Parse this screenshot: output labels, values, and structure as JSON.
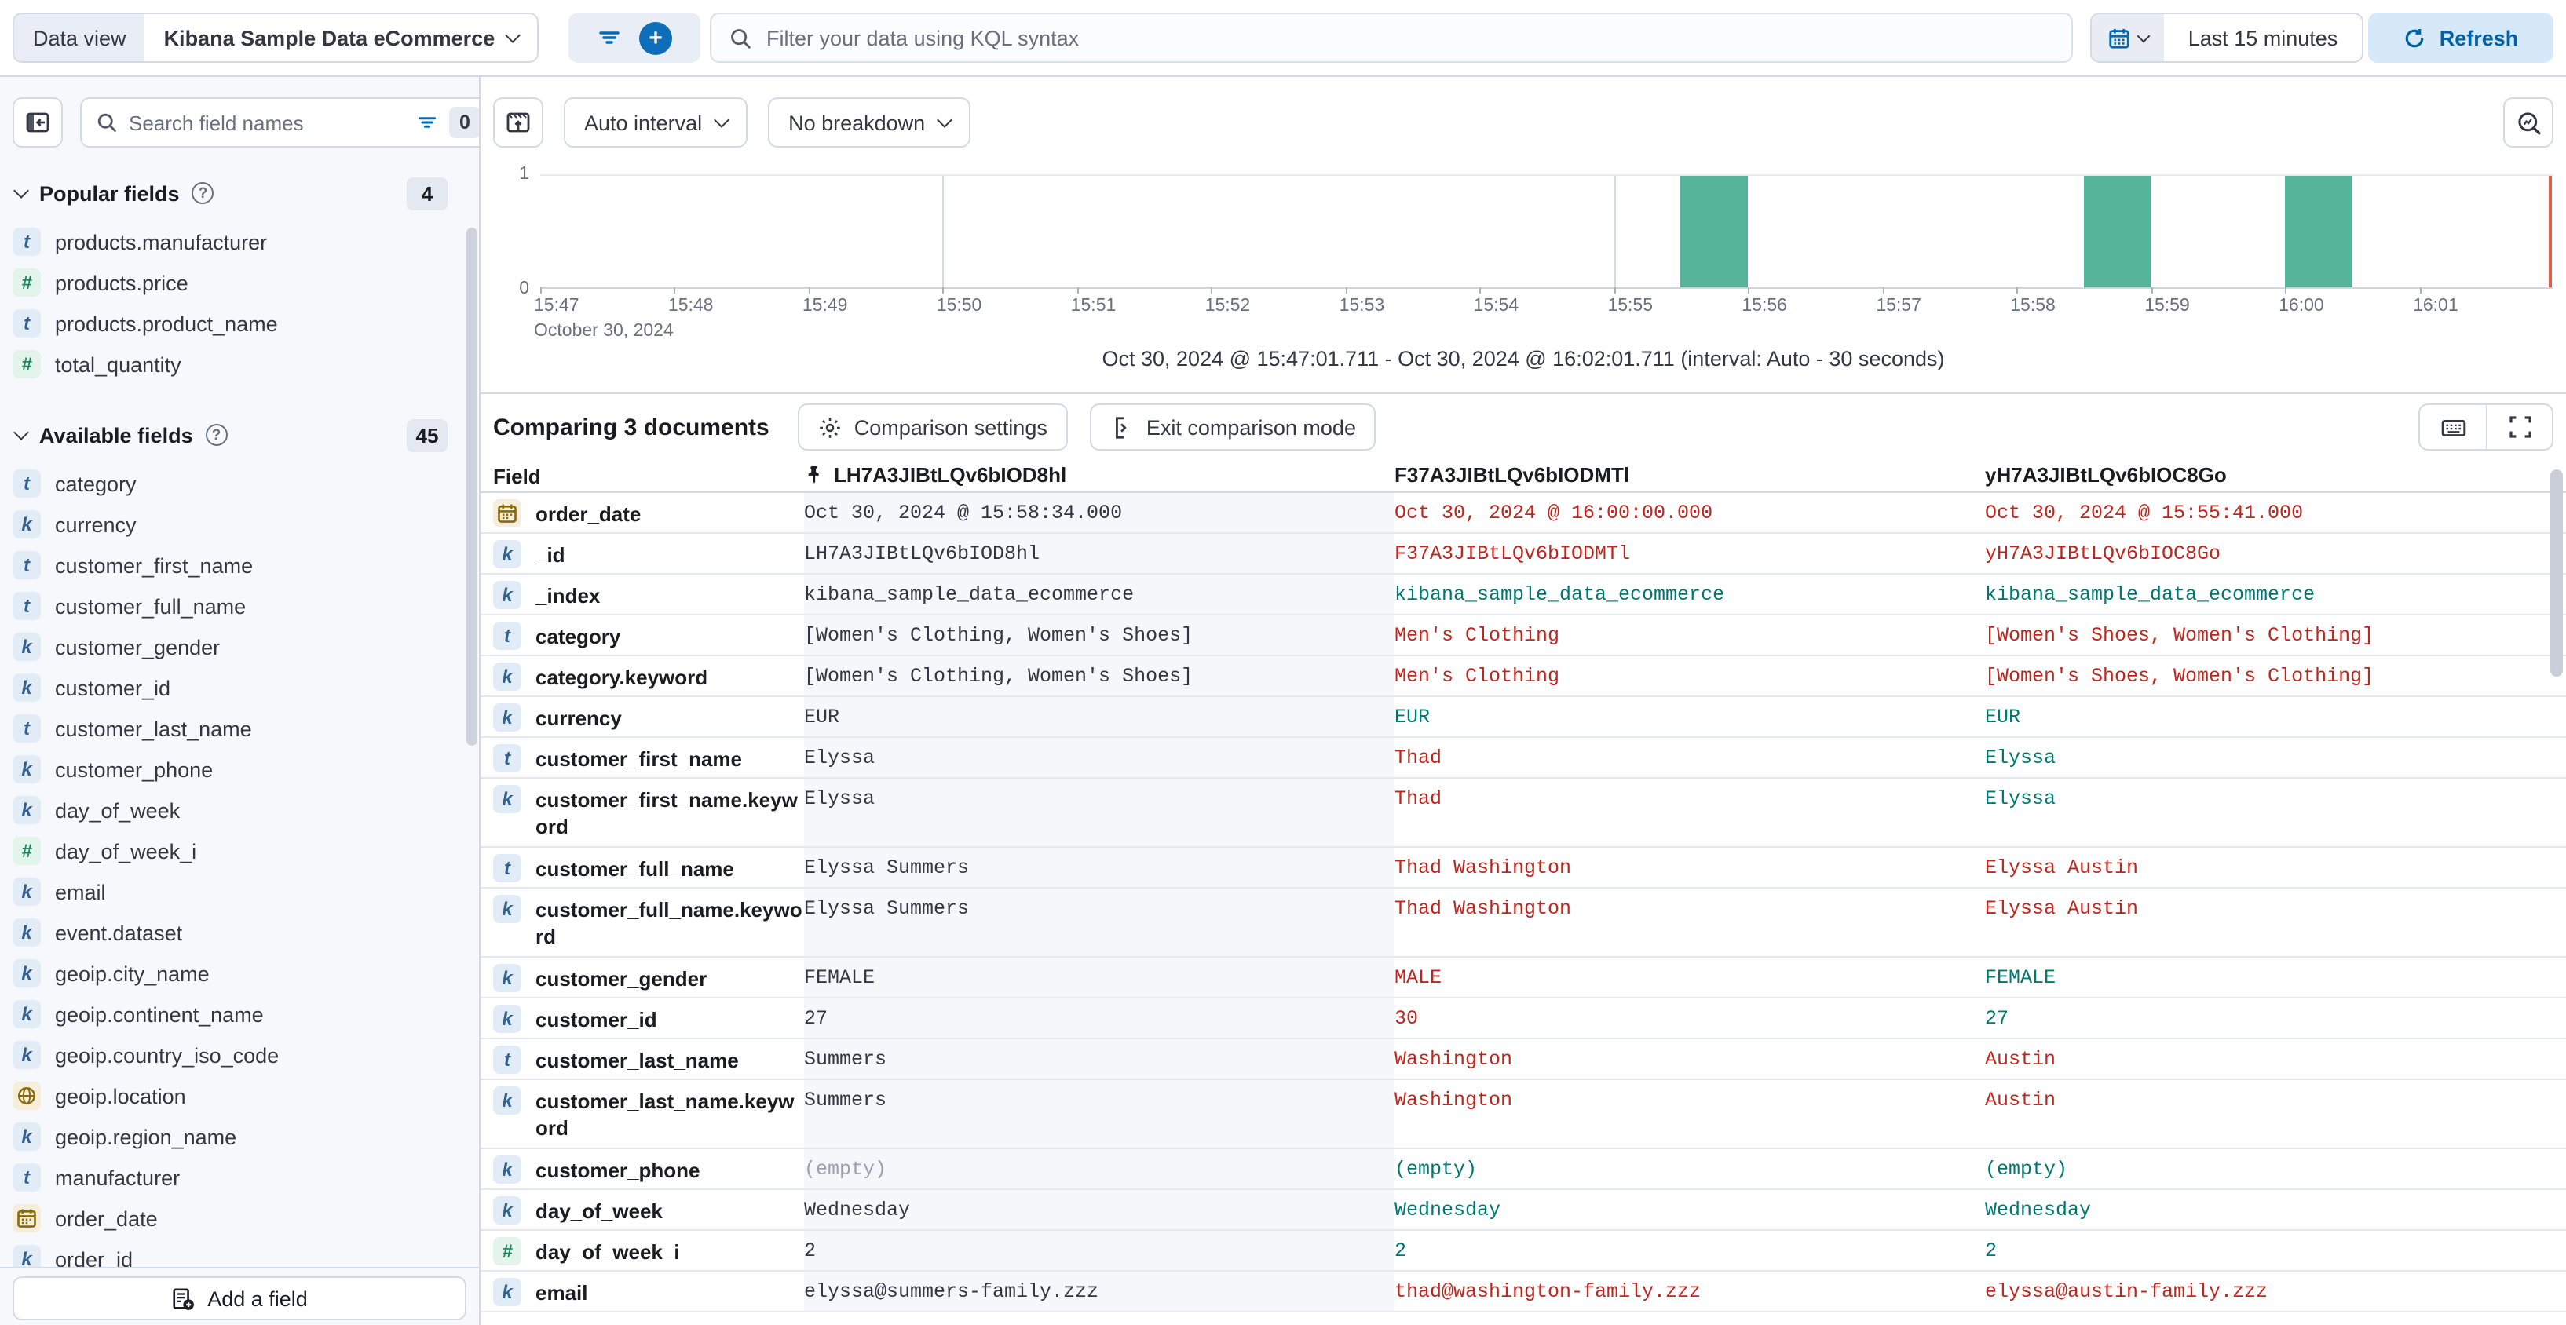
{
  "topbar": {
    "data_view_label": "Data view",
    "data_view_value": "Kibana Sample Data eCommerce",
    "kql_placeholder": "Filter your data using KQL syntax",
    "time_range": "Last 15 minutes",
    "refresh_label": "Refresh"
  },
  "sidebar": {
    "search_placeholder": "Search field names",
    "filter_badge": "0",
    "popular_title": "Popular fields",
    "popular_count": "4",
    "available_title": "Available fields",
    "available_count": "45",
    "add_field_label": "Add a field",
    "popular_items": [
      {
        "name": "products.manufacturer",
        "type": "text"
      },
      {
        "name": "products.price",
        "type": "number"
      },
      {
        "name": "products.product_name",
        "type": "text"
      },
      {
        "name": "total_quantity",
        "type": "number"
      }
    ],
    "available_items": [
      {
        "name": "category",
        "type": "text"
      },
      {
        "name": "currency",
        "type": "keyword"
      },
      {
        "name": "customer_first_name",
        "type": "text"
      },
      {
        "name": "customer_full_name",
        "type": "text"
      },
      {
        "name": "customer_gender",
        "type": "keyword"
      },
      {
        "name": "customer_id",
        "type": "keyword"
      },
      {
        "name": "customer_last_name",
        "type": "text"
      },
      {
        "name": "customer_phone",
        "type": "keyword"
      },
      {
        "name": "day_of_week",
        "type": "keyword"
      },
      {
        "name": "day_of_week_i",
        "type": "number"
      },
      {
        "name": "email",
        "type": "keyword"
      },
      {
        "name": "event.dataset",
        "type": "keyword"
      },
      {
        "name": "geoip.city_name",
        "type": "keyword"
      },
      {
        "name": "geoip.continent_name",
        "type": "keyword"
      },
      {
        "name": "geoip.country_iso_code",
        "type": "keyword"
      },
      {
        "name": "geoip.location",
        "type": "geo"
      },
      {
        "name": "geoip.region_name",
        "type": "keyword"
      },
      {
        "name": "manufacturer",
        "type": "text"
      },
      {
        "name": "order_date",
        "type": "date"
      },
      {
        "name": "order_id",
        "type": "keyword"
      }
    ]
  },
  "chart": {
    "auto_interval_label": "Auto interval",
    "breakdown_label": "No breakdown",
    "caption": "Oct 30, 2024 @ 15:47:01.711 - Oct 30, 2024 @ 16:02:01.711 (interval: Auto - 30 seconds)",
    "date_label": "October 30, 2024",
    "y_max_label": "1",
    "y_min_label": "0"
  },
  "chart_data": {
    "type": "bar",
    "title": "Document count histogram",
    "x_start": "15:47:00",
    "x_end": "16:02:00",
    "bucket_seconds": 30,
    "ylim": [
      0,
      1
    ],
    "x_ticks": [
      "15:47",
      "15:48",
      "15:49",
      "15:50",
      "15:51",
      "15:52",
      "15:53",
      "15:54",
      "15:55",
      "15:56",
      "15:57",
      "15:58",
      "15:59",
      "16:00",
      "16:01"
    ],
    "bars": [
      {
        "time": "15:55:30",
        "value": 1
      },
      {
        "time": "15:58:30",
        "value": 1
      },
      {
        "time": "16:00:00",
        "value": 1
      }
    ],
    "bar_color": "#54b399",
    "now_marker_color": "#d6604a"
  },
  "comparison": {
    "title": "Comparing 3 documents",
    "settings_label": "Comparison settings",
    "exit_label": "Exit comparison mode"
  },
  "table": {
    "field_header": "Field",
    "docs": [
      {
        "id": "LH7A3JIBtLQv6bIOD8hl",
        "pinned": true
      },
      {
        "id": "F37A3JIBtLQv6bIODMTl",
        "pinned": false
      },
      {
        "id": "yH7A3JIBtLQv6bIOC8Go",
        "pinned": false
      }
    ],
    "rows": [
      {
        "field": "order_date",
        "type": "date",
        "cells": [
          {
            "t": "Oct 30, 2024 @ 15:58:34.000",
            "c": "base"
          },
          {
            "t": "Oct 30, 2024 @ 16:00:00.000",
            "c": "diff"
          },
          {
            "t": "Oct 30, 2024 @ 15:55:41.000",
            "c": "diff"
          }
        ]
      },
      {
        "field": "_id",
        "type": "keyword",
        "cells": [
          {
            "t": "LH7A3JIBtLQv6bIOD8hl",
            "c": "base"
          },
          {
            "t": "F37A3JIBtLQv6bIODMTl",
            "c": "diff"
          },
          {
            "t": "yH7A3JIBtLQv6bIOC8Go",
            "c": "diff"
          }
        ]
      },
      {
        "field": "_index",
        "type": "keyword",
        "cells": [
          {
            "t": "kibana_sample_data_ecommerce",
            "c": "base"
          },
          {
            "t": "kibana_sample_data_ecommerce",
            "c": "match"
          },
          {
            "t": "kibana_sample_data_ecommerce",
            "c": "match"
          }
        ]
      },
      {
        "field": "category",
        "type": "text",
        "cells": [
          {
            "t": "[Women's Clothing, Women's Shoes]",
            "c": "base"
          },
          {
            "t": "Men's Clothing",
            "c": "diff"
          },
          {
            "t": "[Women's Shoes, Women's Clothing]",
            "c": "diff"
          }
        ]
      },
      {
        "field": "category.keyword",
        "type": "keyword",
        "cells": [
          {
            "t": "[Women's Clothing, Women's Shoes]",
            "c": "base"
          },
          {
            "t": "Men's Clothing",
            "c": "diff"
          },
          {
            "t": "[Women's Shoes, Women's Clothing]",
            "c": "diff"
          }
        ]
      },
      {
        "field": "currency",
        "type": "keyword",
        "cells": [
          {
            "t": "EUR",
            "c": "base"
          },
          {
            "t": "EUR",
            "c": "match"
          },
          {
            "t": "EUR",
            "c": "match"
          }
        ]
      },
      {
        "field": "customer_first_name",
        "type": "text",
        "cells": [
          {
            "t": "Elyssa",
            "c": "base"
          },
          {
            "t": "Thad",
            "c": "diff"
          },
          {
            "t": "Elyssa",
            "c": "match"
          }
        ]
      },
      {
        "field": "customer_first_name.keyword",
        "type": "keyword",
        "cells": [
          {
            "t": "Elyssa",
            "c": "base"
          },
          {
            "t": "Thad",
            "c": "diff"
          },
          {
            "t": "Elyssa",
            "c": "match"
          }
        ]
      },
      {
        "field": "customer_full_name",
        "type": "text",
        "cells": [
          {
            "t": "Elyssa Summers",
            "c": "base"
          },
          {
            "t": "Thad Washington",
            "c": "diff"
          },
          {
            "t": "Elyssa Austin",
            "c": "diff"
          }
        ]
      },
      {
        "field": "customer_full_name.keyword",
        "type": "keyword",
        "cells": [
          {
            "t": "Elyssa Summers",
            "c": "base"
          },
          {
            "t": "Thad Washington",
            "c": "diff"
          },
          {
            "t": "Elyssa Austin",
            "c": "diff"
          }
        ]
      },
      {
        "field": "customer_gender",
        "type": "keyword",
        "cells": [
          {
            "t": "FEMALE",
            "c": "base"
          },
          {
            "t": "MALE",
            "c": "diff"
          },
          {
            "t": "FEMALE",
            "c": "match"
          }
        ]
      },
      {
        "field": "customer_id",
        "type": "keyword",
        "cells": [
          {
            "t": "27",
            "c": "base"
          },
          {
            "t": "30",
            "c": "diff"
          },
          {
            "t": "27",
            "c": "match"
          }
        ]
      },
      {
        "field": "customer_last_name",
        "type": "text",
        "cells": [
          {
            "t": "Summers",
            "c": "base"
          },
          {
            "t": "Washington",
            "c": "diff"
          },
          {
            "t": "Austin",
            "c": "diff"
          }
        ]
      },
      {
        "field": "customer_last_name.keyword",
        "type": "keyword",
        "cells": [
          {
            "t": "Summers",
            "c": "base"
          },
          {
            "t": "Washington",
            "c": "diff"
          },
          {
            "t": "Austin",
            "c": "diff"
          }
        ]
      },
      {
        "field": "customer_phone",
        "type": "keyword",
        "cells": [
          {
            "t": "(empty)",
            "c": "muted"
          },
          {
            "t": "(empty)",
            "c": "match"
          },
          {
            "t": "(empty)",
            "c": "match"
          }
        ]
      },
      {
        "field": "day_of_week",
        "type": "keyword",
        "cells": [
          {
            "t": "Wednesday",
            "c": "base"
          },
          {
            "t": "Wednesday",
            "c": "match"
          },
          {
            "t": "Wednesday",
            "c": "match"
          }
        ]
      },
      {
        "field": "day_of_week_i",
        "type": "number",
        "cells": [
          {
            "t": "2",
            "c": "base"
          },
          {
            "t": "2",
            "c": "match"
          },
          {
            "t": "2",
            "c": "match"
          }
        ]
      },
      {
        "field": "email",
        "type": "keyword",
        "cells": [
          {
            "t": "elyssa@summers-family.zzz",
            "c": "base"
          },
          {
            "t": "thad@washington-family.zzz",
            "c": "diff"
          },
          {
            "t": "elyssa@austin-family.zzz",
            "c": "diff"
          }
        ]
      }
    ]
  },
  "colors": {
    "diff": "#bd271e",
    "match": "#007871",
    "base": "#343741",
    "muted": "#98a2b3",
    "bar": "#54b399",
    "accent": "#006bb4"
  }
}
